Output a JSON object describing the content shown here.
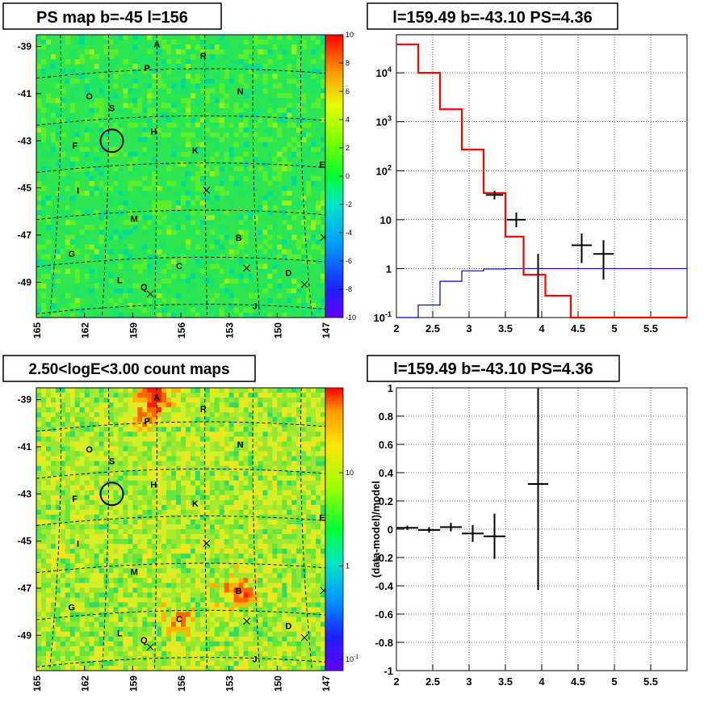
{
  "chart_data": [
    {
      "type": "heatmap",
      "title": "PS map b=-45 l=156",
      "xlim": [
        165,
        147
      ],
      "ylim": [
        -50.5,
        -38.5
      ],
      "x_ticks": [
        "165",
        "162",
        "159",
        "156",
        "153",
        "150",
        "147"
      ],
      "y_ticks": [
        "-39",
        "-41",
        "-43",
        "-45",
        "-47",
        "-49"
      ],
      "colorbar_ticks": [
        "10",
        "8",
        "6",
        "4",
        "2",
        "0",
        "-2",
        "-4",
        "-6",
        "-8",
        "-10"
      ],
      "colorbar_range": [
        -10,
        10
      ],
      "circle": {
        "l": 160.3,
        "b": -43.0
      },
      "source_labels": [
        {
          "text": "A",
          "l": 157.5,
          "b": -38.9
        },
        {
          "text": "R",
          "l": 154.6,
          "b": -39.4
        },
        {
          "text": "P",
          "l": 158.1,
          "b": -39.9
        },
        {
          "text": "N",
          "l": 152.3,
          "b": -40.9
        },
        {
          "text": "O",
          "l": 161.7,
          "b": -41.1
        },
        {
          "text": "S",
          "l": 160.3,
          "b": -41.6
        },
        {
          "text": "H",
          "l": 157.7,
          "b": -42.6
        },
        {
          "text": "F",
          "l": 162.6,
          "b": -43.2
        },
        {
          "text": "K",
          "l": 155.1,
          "b": -43.4
        },
        {
          "text": "E",
          "l": 147.2,
          "b": -44.0
        },
        {
          "text": "I",
          "l": 162.4,
          "b": -45.1
        },
        {
          "text": "M",
          "l": 158.9,
          "b": -46.3
        },
        {
          "text": "B",
          "l": 152.4,
          "b": -47.1
        },
        {
          "text": "G",
          "l": 162.8,
          "b": -47.8
        },
        {
          "text": "C",
          "l": 156.1,
          "b": -48.3
        },
        {
          "text": "D",
          "l": 149.3,
          "b": -48.6
        },
        {
          "text": "L",
          "l": 159.8,
          "b": -48.9
        },
        {
          "text": "Q",
          "l": 158.3,
          "b": -49.2
        },
        {
          "text": "J",
          "l": 151.4,
          "b": -50.0
        }
      ],
      "cross_markers": [
        {
          "l": 154.4,
          "b": -45.1
        },
        {
          "l": 151.9,
          "b": -48.4
        },
        {
          "l": 147.1,
          "b": -47.1
        },
        {
          "l": 148.3,
          "b": -49.1
        },
        {
          "l": 157.9,
          "b": -49.5
        }
      ]
    },
    {
      "type": "line",
      "title": "l=159.49 b=-43.10 PS=4.36",
      "xlim": [
        2,
        6
      ],
      "ylim_log": [
        0.1,
        60000
      ],
      "x_ticks": [
        "2",
        "2.5",
        "3",
        "3.5",
        "4",
        "4.5",
        "5",
        "5.5"
      ],
      "y_ticks": [
        "10^-1",
        "1",
        "10",
        "10^2",
        "10^3",
        "10^4"
      ],
      "model_red": {
        "edges": [
          2.0,
          2.3,
          2.6,
          2.9,
          3.2,
          3.5,
          3.75,
          4.05,
          4.4,
          6.0
        ],
        "values": [
          38000,
          10000,
          1800,
          270,
          35,
          4.5,
          0.75,
          0.28,
          0.1
        ]
      },
      "model_blue": {
        "edges": [
          2.0,
          2.3,
          2.6,
          2.9,
          3.2,
          3.5,
          6.0
        ],
        "values": [
          0.1,
          0.18,
          0.55,
          0.9,
          0.98,
          1.0
        ]
      },
      "data_points": [
        {
          "x": 3.35,
          "y": 32,
          "xerr": 0.12,
          "ylo": 26,
          "yhi": 39
        },
        {
          "x": 3.65,
          "y": 10,
          "xerr": 0.13,
          "ylo": 7,
          "yhi": 14
        },
        {
          "x": 3.95,
          "y": 1.0,
          "xerr": 0.0,
          "ylo": 0.1,
          "yhi": 2.0
        },
        {
          "x": 4.55,
          "y": 3.0,
          "xerr": 0.14,
          "ylo": 1.3,
          "yhi": 5.2
        },
        {
          "x": 4.85,
          "y": 2.0,
          "xerr": 0.14,
          "ylo": 0.6,
          "yhi": 3.8
        }
      ]
    },
    {
      "type": "heatmap",
      "title": "2.50<logE<3.00 count maps",
      "xlim": [
        165,
        147
      ],
      "ylim": [
        -50.5,
        -38.5
      ],
      "x_ticks": [
        "165",
        "162",
        "159",
        "156",
        "153",
        "150",
        "147"
      ],
      "y_ticks": [
        "-39",
        "-41",
        "-43",
        "-45",
        "-47",
        "-49"
      ],
      "colorbar_ticks": [
        "10",
        "1",
        "10^-1"
      ],
      "hotspots": [
        {
          "l": 157.6,
          "b": -38.8,
          "strength": 1.0
        },
        {
          "l": 152.4,
          "b": -47.1,
          "strength": 0.8
        },
        {
          "l": 156.2,
          "b": -48.4,
          "strength": 0.55
        },
        {
          "l": 158.3,
          "b": -39.8,
          "strength": 0.5
        }
      ]
    },
    {
      "type": "scatter",
      "title": "l=159.49 b=-43.10 PS=4.36",
      "ylabel": "(data-model)/model",
      "xlim": [
        2,
        6
      ],
      "ylim": [
        -1,
        1
      ],
      "x_ticks": [
        "2",
        "2.5",
        "3",
        "3.5",
        "4",
        "4.5",
        "5",
        "5.5"
      ],
      "y_ticks": [
        "1",
        "0.8",
        "0.6",
        "0.4",
        "0.2",
        "0",
        "-0.2",
        "-0.4",
        "-0.6",
        "-0.8",
        "-1"
      ],
      "points": [
        {
          "x": 2.15,
          "y": 0.01,
          "xerr": 0.15,
          "yerr": 0.015
        },
        {
          "x": 2.45,
          "y": -0.005,
          "xerr": 0.15,
          "yerr": 0.02
        },
        {
          "x": 2.75,
          "y": 0.015,
          "xerr": 0.15,
          "yerr": 0.03
        },
        {
          "x": 3.05,
          "y": -0.03,
          "xerr": 0.15,
          "yerr": 0.06
        },
        {
          "x": 3.35,
          "y": -0.05,
          "xerr": 0.15,
          "yerr": 0.16
        },
        {
          "x": 3.95,
          "y": 0.32,
          "xerr": 0.14,
          "yerr": 0.75
        }
      ]
    }
  ]
}
